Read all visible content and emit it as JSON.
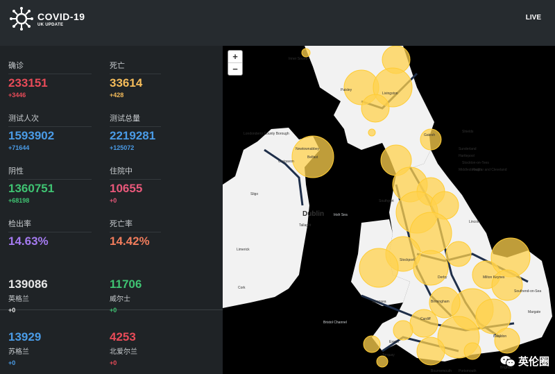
{
  "header": {
    "title": "COVID-19",
    "subtitle": "UK UPDATE",
    "live_label": "LIVE"
  },
  "stats": [
    {
      "label": "确诊",
      "value": "233151",
      "delta": "+3446",
      "color": "#e84b58",
      "delta_color": "#e84b58"
    },
    {
      "label": "死亡",
      "value": "33614",
      "delta": "+428",
      "color": "#f5bc5a",
      "delta_color": "#f5bc5a"
    },
    {
      "label": "测试人次",
      "value": "1593902",
      "delta": "+71644",
      "color": "#4a9be6",
      "delta_color": "#4a9be6"
    },
    {
      "label": "测试总量",
      "value": "2219281",
      "delta": "+125072",
      "color": "#4a9be6",
      "delta_color": "#4a9be6"
    },
    {
      "label": "阴性",
      "value": "1360751",
      "delta": "+68198",
      "color": "#3fc372",
      "delta_color": "#3fc372"
    },
    {
      "label": "住院中",
      "value": "10655",
      "delta": "+0",
      "color": "#e8587a",
      "delta_color": "#e8587a"
    },
    {
      "label": "检出率",
      "value": "14.63%",
      "delta": "",
      "color": "#a47af0",
      "delta_color": "#a47af0"
    },
    {
      "label": "死亡率",
      "value": "14.42%",
      "delta": "",
      "color": "#f07c5c",
      "delta_color": "#f07c5c"
    }
  ],
  "regions": [
    {
      "value": "139086",
      "name": "英格兰",
      "delta": "+0",
      "color": "#e8e8e8",
      "delta_color": "#e8e8e8"
    },
    {
      "value": "11706",
      "name": "威尔士",
      "delta": "+0",
      "color": "#3fc372",
      "delta_color": "#3fc372"
    },
    {
      "value": "13929",
      "name": "苏格兰",
      "delta": "+0",
      "color": "#4a9be6",
      "delta_color": "#4a9be6"
    },
    {
      "value": "4253",
      "name": "北爱尔兰",
      "delta": "+0",
      "color": "#e84b58",
      "delta_color": "#e84b58"
    }
  ],
  "map": {
    "zoom_in": "+",
    "zoom_out": "−",
    "labels": [
      "Inner Sound",
      "Paisley",
      "Livingston",
      "Londonderry County Borough",
      "Newtownabbey",
      "Belfast",
      "Craigavon",
      "Gatesh",
      "Shields",
      "Sunderland",
      "Middlesbrough",
      "Redcar and Cleveland",
      "Stockton-on-Tees",
      "Hartlepool",
      "Dublin",
      "Irish Sea",
      "Tallaght",
      "Sligo",
      "Limerick",
      "Cork",
      "Southport",
      "Lincoln",
      "Stockport",
      "Derby",
      "Birmingham",
      "Milton Keynes",
      "Southend-on-Sea",
      "Bristol Channel",
      "Swansea",
      "Cardiff",
      "Exeter",
      "Torquay",
      "Basildon",
      "Bournemouth",
      "Portsmouth",
      "Brighton",
      "Margate"
    ],
    "accent_color": "#ffd24d"
  },
  "watermark": "英伦圈"
}
